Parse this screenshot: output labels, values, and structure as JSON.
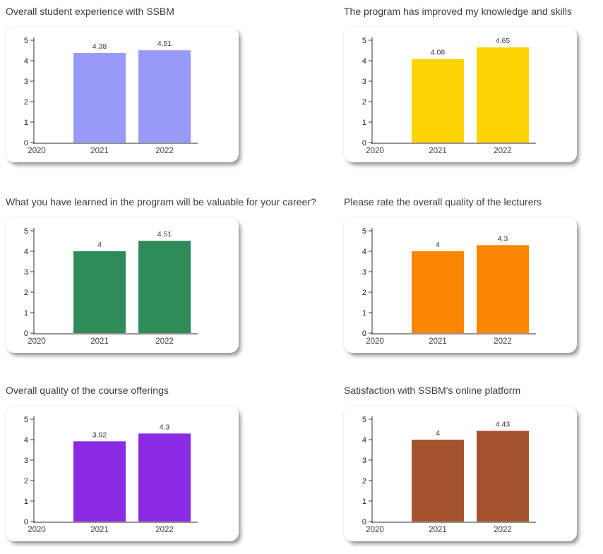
{
  "page": {
    "background": "#ffffff"
  },
  "chart_data": [
    {
      "type": "bar",
      "title": "Overall student experience with SSBM",
      "color": "#9999F7",
      "categories": [
        "2020",
        "2021",
        "2022"
      ],
      "values": [
        null,
        4.38,
        4.51
      ],
      "value_labels": [
        "",
        "4.38",
        "4.51"
      ],
      "xlabel": "",
      "ylabel": "",
      "ylim": [
        0,
        5
      ],
      "yticks": [
        0,
        1,
        2,
        3,
        4,
        5
      ],
      "grid": false,
      "legend": "none"
    },
    {
      "type": "bar",
      "title": "The program has improved my knowledge and skills",
      "color": "#FDD306",
      "categories": [
        "2020",
        "2021",
        "2022"
      ],
      "values": [
        null,
        4.08,
        4.65
      ],
      "value_labels": [
        "",
        "4.08",
        "4.65"
      ],
      "xlabel": "",
      "ylabel": "",
      "ylim": [
        0,
        5
      ],
      "yticks": [
        0,
        1,
        2,
        3,
        4,
        5
      ],
      "grid": false,
      "legend": "none"
    },
    {
      "type": "bar",
      "title": "What you have learned in the program will be valuable for your career?",
      "color": "#2F8B58",
      "categories": [
        "2020",
        "2021",
        "2022"
      ],
      "values": [
        null,
        4,
        4.51
      ],
      "value_labels": [
        "",
        "4",
        "4.51"
      ],
      "xlabel": "",
      "ylabel": "",
      "ylim": [
        0,
        5
      ],
      "yticks": [
        0,
        1,
        2,
        3,
        4,
        5
      ],
      "grid": false,
      "legend": "none"
    },
    {
      "type": "bar",
      "title": "Please rate the overall quality of the lecturers",
      "color": "#FB8604",
      "categories": [
        "2020",
        "2021",
        "2022"
      ],
      "values": [
        null,
        4,
        4.3
      ],
      "value_labels": [
        "",
        "4",
        "4.3"
      ],
      "xlabel": "",
      "ylabel": "",
      "ylim": [
        0,
        5
      ],
      "yticks": [
        0,
        1,
        2,
        3,
        4,
        5
      ],
      "grid": false,
      "legend": "none"
    },
    {
      "type": "bar",
      "title": "Overall quality of the course offerings",
      "color": "#8A2BE2",
      "categories": [
        "2020",
        "2021",
        "2022"
      ],
      "values": [
        null,
        3.92,
        4.3
      ],
      "value_labels": [
        "",
        "3.92",
        "4.3"
      ],
      "xlabel": "",
      "ylabel": "",
      "ylim": [
        0,
        5
      ],
      "yticks": [
        0,
        1,
        2,
        3,
        4,
        5
      ],
      "grid": false,
      "legend": "none"
    },
    {
      "type": "bar",
      "title": "Satisfaction with SSBM's online platform",
      "color": "#A5532E",
      "categories": [
        "2020",
        "2021",
        "2022"
      ],
      "values": [
        null,
        4,
        4.43
      ],
      "value_labels": [
        "",
        "4",
        "4.43"
      ],
      "xlabel": "",
      "ylabel": "",
      "ylim": [
        0,
        5
      ],
      "yticks": [
        0,
        1,
        2,
        3,
        4,
        5
      ],
      "grid": false,
      "legend": "none"
    }
  ]
}
